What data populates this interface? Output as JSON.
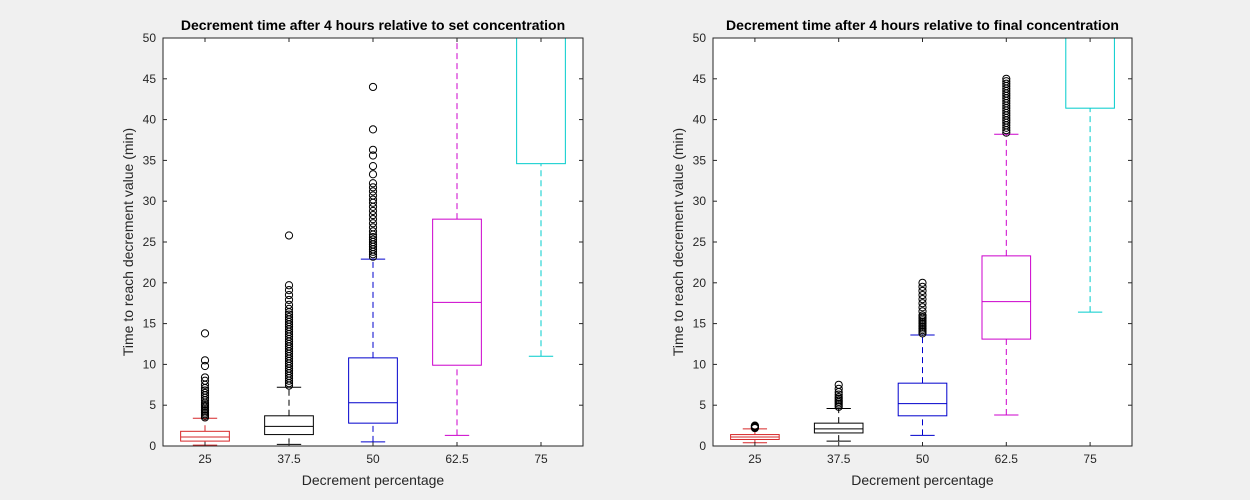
{
  "chart_data": [
    {
      "type": "box",
      "title": "Decrement time after 4 hours relative to set concentration",
      "xlabel": "Decrement percentage",
      "ylabel": "Time to reach decrement value (min)",
      "ylim": [
        0,
        50
      ],
      "yticks": [
        0,
        5,
        10,
        15,
        20,
        25,
        30,
        35,
        40,
        45,
        50
      ],
      "categories": [
        "25",
        "37.5",
        "50",
        "62.5",
        "75"
      ],
      "boxes": [
        {
          "category": "25",
          "color": "#d62728",
          "whisker_low": 0.1,
          "q1": 0.6,
          "median": 1.1,
          "q3": 1.8,
          "whisker_high": 3.4,
          "outliers": [
            3.5,
            3.7,
            3.9,
            4.1,
            4.3,
            4.5,
            4.7,
            4.9,
            5.1,
            5.3,
            5.6,
            5.9,
            6.2,
            6.5,
            6.8,
            7.1,
            7.5,
            8.0,
            8.4,
            9.8,
            10.5,
            13.8
          ]
        },
        {
          "category": "37.5",
          "color": "#000000",
          "whisker_low": 0.2,
          "q1": 1.4,
          "median": 2.4,
          "q3": 3.7,
          "whisker_high": 7.2,
          "outliers": [
            7.4,
            7.7,
            8.0,
            8.3,
            8.6,
            8.9,
            9.2,
            9.5,
            9.8,
            10.1,
            10.4,
            10.7,
            11.0,
            11.3,
            11.6,
            11.9,
            12.2,
            12.5,
            12.8,
            13.1,
            13.4,
            13.7,
            14.0,
            14.3,
            14.6,
            14.9,
            15.2,
            15.5,
            15.8,
            16.1,
            16.4,
            16.8,
            17.3,
            17.9,
            18.5,
            19.1,
            19.7,
            25.8
          ]
        },
        {
          "category": "50",
          "color": "#0000cc",
          "whisker_low": 0.5,
          "q1": 2.8,
          "median": 5.3,
          "q3": 10.8,
          "whisker_high": 22.9,
          "outliers": [
            23.2,
            23.5,
            23.8,
            24.1,
            24.4,
            24.7,
            25.0,
            25.3,
            25.6,
            25.9,
            26.3,
            26.8,
            27.3,
            27.8,
            28.3,
            28.8,
            29.3,
            29.8,
            30.2,
            30.7,
            31.2,
            31.7,
            32.2,
            33.3,
            34.3,
            35.6,
            36.3,
            38.8,
            44.0
          ]
        },
        {
          "category": "62.5",
          "color": "#cc00cc",
          "whisker_low": 1.3,
          "q1": 9.9,
          "median": 17.6,
          "q3": 27.8,
          "whisker_high": 50,
          "outliers": []
        },
        {
          "category": "75",
          "color": "#00cccc",
          "whisker_low": 11.0,
          "q1": 34.6,
          "median": 50,
          "q3": 50,
          "whisker_high": 50,
          "outliers": []
        }
      ]
    },
    {
      "type": "box",
      "title": "Decrement time after 4 hours relative to final concentration",
      "xlabel": "Decrement percentage",
      "ylabel": "Time to reach decrement value (min)",
      "ylim": [
        0,
        50
      ],
      "yticks": [
        0,
        5,
        10,
        15,
        20,
        25,
        30,
        35,
        40,
        45,
        50
      ],
      "categories": [
        "25",
        "37.5",
        "50",
        "62.5",
        "75"
      ],
      "boxes": [
        {
          "category": "25",
          "color": "#d62728",
          "whisker_low": 0.4,
          "q1": 0.8,
          "median": 1.1,
          "q3": 1.4,
          "whisker_high": 2.1,
          "outliers": [
            2.2,
            2.3,
            2.4,
            2.5
          ]
        },
        {
          "category": "37.5",
          "color": "#000000",
          "whisker_low": 0.6,
          "q1": 1.6,
          "median": 2.1,
          "q3": 2.8,
          "whisker_high": 4.6,
          "outliers": [
            4.8,
            5.0,
            5.2,
            5.4,
            5.6,
            5.8,
            6.0,
            6.3,
            6.6,
            7.0,
            7.5
          ]
        },
        {
          "category": "50",
          "color": "#0000cc",
          "whisker_low": 1.3,
          "q1": 3.7,
          "median": 5.2,
          "q3": 7.7,
          "whisker_high": 13.6,
          "outliers": [
            13.8,
            14.0,
            14.2,
            14.4,
            14.6,
            14.8,
            15.0,
            15.2,
            15.4,
            15.6,
            15.8,
            16.0,
            16.5,
            17.0,
            17.5,
            18.0,
            18.5,
            19.0,
            19.5,
            20.0
          ]
        },
        {
          "category": "62.5",
          "color": "#cc00cc",
          "whisker_low": 3.8,
          "q1": 13.1,
          "median": 17.7,
          "q3": 23.3,
          "whisker_high": 38.2,
          "outliers": [
            38.4,
            38.7,
            39.0,
            39.3,
            39.6,
            39.9,
            40.2,
            40.5,
            40.8,
            41.1,
            41.4,
            41.7,
            42.0,
            42.3,
            42.6,
            42.9,
            43.2,
            43.5,
            43.8,
            44.1,
            44.4,
            44.7,
            45.0
          ]
        },
        {
          "category": "75",
          "color": "#00cccc",
          "whisker_low": 16.4,
          "q1": 41.4,
          "median": 50,
          "q3": 50,
          "whisker_high": 50,
          "outliers": []
        }
      ]
    }
  ]
}
